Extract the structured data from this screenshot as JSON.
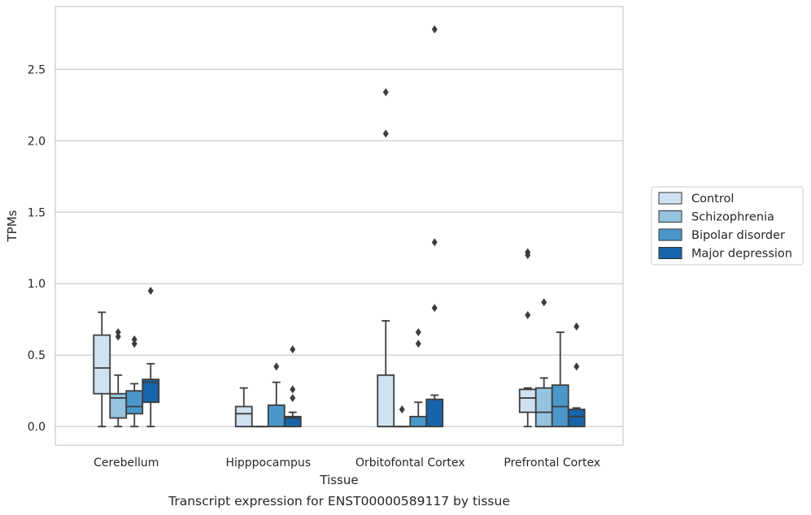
{
  "caption": "Transcript expression for ENST00000589117 by tissue",
  "chart_data": {
    "type": "box",
    "xlabel": "Tissue",
    "ylabel": "TPMs",
    "ylim": [
      -0.13,
      2.94
    ],
    "yticks": [
      0.0,
      0.5,
      1.0,
      1.5,
      2.0,
      2.5
    ],
    "ytick_labels": [
      "0.0",
      "0.5",
      "1.0",
      "1.5",
      "2.0",
      "2.5"
    ],
    "grid": "horizontal",
    "legend_position": "right",
    "categories": [
      "Cerebellum",
      "Hipppocampus",
      "Orbitofontal Cortex",
      "Prefrontal Cortex"
    ],
    "series": [
      {
        "name": "Control",
        "color": "#d0e1f2",
        "boxes": [
          {
            "whislo": 0.0,
            "q1": 0.23,
            "med": 0.41,
            "q3": 0.64,
            "whishi": 0.8,
            "fliers": []
          },
          {
            "whislo": 0.0,
            "q1": 0.0,
            "med": 0.09,
            "q3": 0.14,
            "whishi": 0.27,
            "fliers": []
          },
          {
            "whislo": 0.0,
            "q1": 0.0,
            "med": 0.0,
            "q3": 0.36,
            "whishi": 0.74,
            "fliers": [
              2.34,
              2.05
            ]
          },
          {
            "whislo": 0.0,
            "q1": 0.1,
            "med": 0.2,
            "q3": 0.26,
            "whishi": 0.27,
            "fliers": [
              1.22,
              1.2,
              0.78
            ]
          }
        ]
      },
      {
        "name": "Schizophrenia",
        "color": "#94c4df",
        "boxes": [
          {
            "whislo": 0.0,
            "q1": 0.06,
            "med": 0.2,
            "q3": 0.23,
            "whishi": 0.36,
            "fliers": [
              0.66,
              0.63
            ]
          },
          {
            "whislo": 0.0,
            "q1": 0.0,
            "med": 0.0,
            "q3": 0.0,
            "whishi": 0.0,
            "fliers": []
          },
          {
            "whislo": 0.0,
            "q1": 0.0,
            "med": 0.0,
            "q3": 0.0,
            "whishi": 0.0,
            "fliers": [
              0.12
            ]
          },
          {
            "whislo": 0.0,
            "q1": 0.0,
            "med": 0.1,
            "q3": 0.27,
            "whishi": 0.34,
            "fliers": [
              0.87
            ]
          }
        ]
      },
      {
        "name": "Bipolar disorder",
        "color": "#4a98c9",
        "boxes": [
          {
            "whislo": 0.0,
            "q1": 0.09,
            "med": 0.14,
            "q3": 0.25,
            "whishi": 0.3,
            "fliers": [
              0.61,
              0.58
            ]
          },
          {
            "whislo": 0.0,
            "q1": 0.0,
            "med": 0.0,
            "q3": 0.15,
            "whishi": 0.31,
            "fliers": [
              0.42
            ]
          },
          {
            "whislo": 0.0,
            "q1": 0.0,
            "med": 0.0,
            "q3": 0.07,
            "whishi": 0.17,
            "fliers": [
              0.66,
              0.58
            ]
          },
          {
            "whislo": 0.0,
            "q1": 0.0,
            "med": 0.14,
            "q3": 0.29,
            "whishi": 0.66,
            "fliers": []
          }
        ]
      },
      {
        "name": "Major depression",
        "color": "#1764ab",
        "boxes": [
          {
            "whislo": 0.0,
            "q1": 0.17,
            "med": 0.31,
            "q3": 0.33,
            "whishi": 0.44,
            "fliers": [
              0.95
            ]
          },
          {
            "whislo": 0.0,
            "q1": 0.0,
            "med": 0.06,
            "q3": 0.07,
            "whishi": 0.1,
            "fliers": [
              0.54,
              0.26,
              0.2
            ]
          },
          {
            "whislo": 0.0,
            "q1": 0.0,
            "med": 0.19,
            "q3": 0.19,
            "whishi": 0.22,
            "fliers": [
              2.78,
              1.29,
              0.83
            ]
          },
          {
            "whislo": 0.0,
            "q1": 0.0,
            "med": 0.07,
            "q3": 0.12,
            "whishi": 0.13,
            "fliers": [
              0.7,
              0.42
            ]
          }
        ]
      }
    ]
  }
}
